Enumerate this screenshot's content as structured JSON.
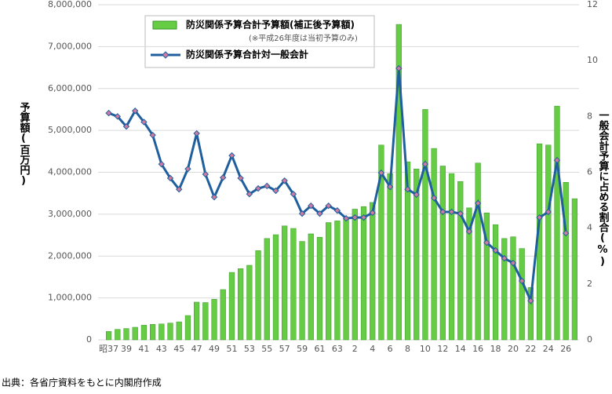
{
  "chart_data": {
    "type": "bar_line",
    "y_label": "予算額(百万円)",
    "y2_label": "一般会計予算に占める割合(%)",
    "legend_note": "(※平成26年度は当初予算のみ)",
    "source": "出典：各省庁資料をもとに内閣府作成",
    "categories": [
      "昭37",
      null,
      "39",
      null,
      "41",
      null,
      "43",
      null,
      "45",
      null,
      "47",
      null,
      "49",
      null,
      "51",
      null,
      "53",
      null,
      "55",
      null,
      "57",
      null,
      "59",
      null,
      "61",
      null,
      "63",
      null,
      "2",
      null,
      "4",
      null,
      "6",
      null,
      "8",
      null,
      "10",
      null,
      "12",
      null,
      "14",
      null,
      "16",
      null,
      "18",
      null,
      "20",
      null,
      "22",
      null,
      "24",
      null,
      "26",
      null
    ],
    "series": [
      {
        "name": "防災関係予算合計予算額(補正後予算額)",
        "color": "#66cc44",
        "kind": "bar",
        "values": [
          200000,
          250000,
          270000,
          300000,
          350000,
          370000,
          380000,
          400000,
          430000,
          580000,
          900000,
          890000,
          970000,
          1200000,
          1610000,
          1700000,
          1780000,
          2130000,
          2420000,
          2510000,
          2720000,
          2660000,
          2350000,
          2530000,
          2450000,
          2800000,
          2840000,
          2900000,
          3120000,
          3180000,
          3280000,
          4650000,
          3970000,
          7530000,
          4250000,
          4080000,
          5500000,
          4570000,
          4150000,
          3970000,
          3780000,
          3150000,
          4220000,
          3030000,
          2750000,
          2420000,
          2460000,
          2180000,
          1250000,
          4680000,
          4650000,
          5580000,
          3760000,
          3370000
        ]
      },
      {
        "name": "防災関係予算合計対一般会計",
        "color": "#1f5f9e",
        "kind": "line",
        "axis": "y2",
        "values": [
          8.12,
          8.0,
          7.64,
          8.2,
          7.8,
          7.33,
          6.29,
          5.79,
          5.39,
          6.12,
          7.39,
          5.93,
          5.11,
          5.81,
          6.6,
          5.79,
          5.22,
          5.42,
          5.51,
          5.34,
          5.7,
          5.22,
          4.52,
          4.8,
          4.52,
          4.8,
          4.63,
          4.35,
          4.38,
          4.38,
          4.55,
          5.98,
          5.48,
          9.72,
          5.39,
          5.2,
          6.29,
          5.08,
          4.58,
          4.58,
          4.52,
          3.88,
          4.89,
          3.48,
          3.2,
          2.92,
          2.75,
          2.11,
          1.4,
          4.38,
          4.58,
          6.43,
          3.82,
          null
        ]
      }
    ],
    "ylim": [
      0,
      8000000
    ],
    "yticks": [
      0,
      {
        "value": 1000000,
        "label": "1,000,000"
      },
      {
        "value": 2000000,
        "label": "2,000,000"
      },
      {
        "value": 3000000,
        "label": "3,000,000"
      },
      {
        "value": 4000000,
        "label": "4,000,000"
      },
      {
        "value": 5000000,
        "label": "5,000,000"
      },
      {
        "value": 6000000,
        "label": "6,000,000"
      },
      {
        "value": 7000000,
        "label": "7,000,000"
      },
      {
        "value": 8000000,
        "label": "8,000,000"
      }
    ],
    "y2lim": [
      0,
      12
    ],
    "y2ticks": [
      0,
      2,
      4,
      6,
      8,
      10,
      12
    ],
    "grid": true
  }
}
